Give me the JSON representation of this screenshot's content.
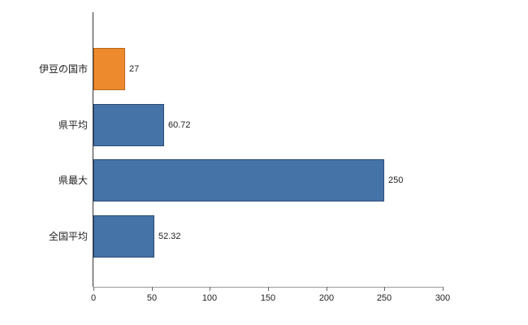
{
  "chart_data": {
    "type": "bar",
    "orientation": "horizontal",
    "title": "",
    "categories": [
      "伊豆の国市",
      "県平均",
      "県最大",
      "全国平均"
    ],
    "values": [
      27,
      60.72,
      250,
      52.32
    ],
    "value_labels": [
      "27",
      "60.72",
      "250",
      "52.32"
    ],
    "bar_colors": [
      "#ed8a2d",
      "#4572a7",
      "#4572a7",
      "#4572a7"
    ],
    "bar_border_colors": [
      "#b9671a",
      "#2c4d75",
      "#2c4d75",
      "#2c4d75"
    ],
    "xlim": [
      0,
      300
    ],
    "x_ticks": [
      0,
      50,
      100,
      150,
      200,
      250,
      300
    ],
    "grid": false,
    "legend": "none",
    "axis_color": "#333333",
    "x_axis_line_color": "#999999",
    "tick_mark_color": "#666666",
    "label_color": "#222222",
    "background_color": "#ffffff"
  }
}
